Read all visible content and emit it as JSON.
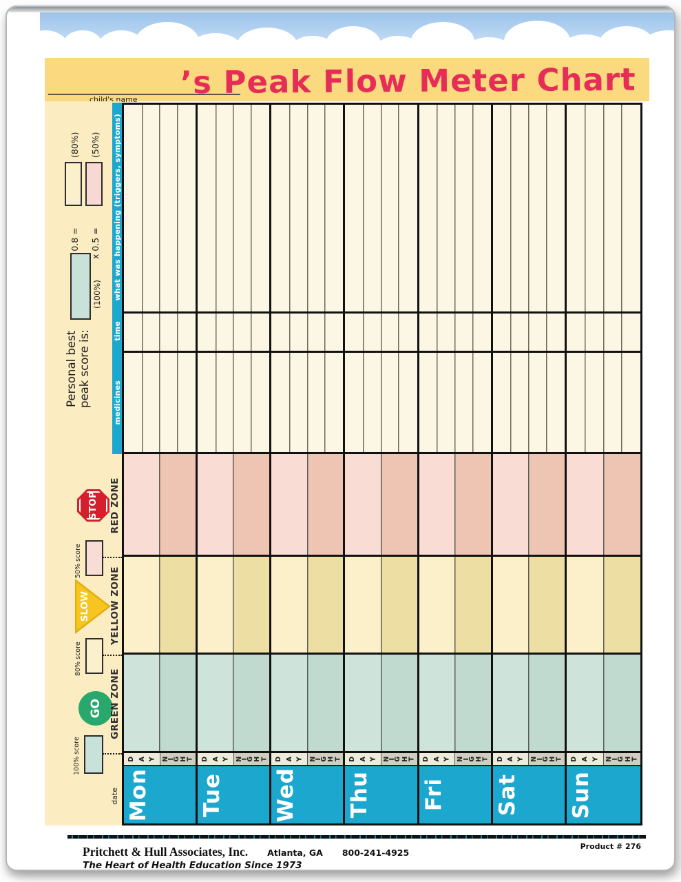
{
  "header": {
    "title": "’s Peak Flow Meter Chart",
    "child_name_label": "child's name",
    "child_name_value": ""
  },
  "sidebar": {
    "personal_best_line1": "Personal best",
    "personal_best_line2": "peak score is:",
    "pct_100_label": "(100%)",
    "mult_80_label": "x 0.8 =",
    "pct_80_label": "(80%)",
    "mult_50_label": "x 0.5 =",
    "pct_50_label": "(50%)",
    "score_50_label": "50% score",
    "score_80_label": "80% score",
    "score_100_label": "100% score",
    "date_label": "date"
  },
  "row_headers": [
    "what was happening (triggers, symptoms)",
    "time",
    "medicines"
  ],
  "zones": [
    {
      "name": "RED ZONE",
      "sign": "STOP"
    },
    {
      "name": "YELLOW ZONE",
      "sign": "SLOW"
    },
    {
      "name": "GREEN ZONE",
      "sign": "GO"
    }
  ],
  "grid": {
    "day_label": "DAY",
    "night_label": "NIGHT",
    "days": [
      {
        "label": "Mon"
      },
      {
        "label": "Tue"
      },
      {
        "label": "Wed"
      },
      {
        "label": "Thu"
      },
      {
        "label": "Fri"
      },
      {
        "label": "Sat"
      },
      {
        "label": "Sun"
      }
    ]
  },
  "footer": {
    "company": "Pritchett & Hull Associates, Inc.",
    "city": "Atlanta, GA",
    "phone": "800-241-4925",
    "tagline": "The Heart of Health Education Since 1973",
    "product": "Product # 276"
  },
  "colors": {
    "accent_blue": "#1ba7ce",
    "header_yellow": "#fbd97e",
    "side_cream": "#fbecc1",
    "grid_cream": "#fcf7e4",
    "title_pink": "#e62d58",
    "red_zone_day": "#f9dcd3",
    "red_zone_night": "#eec5b3",
    "yellow_zone_day": "#fbf0ca",
    "yellow_zone_night": "#eddfa4",
    "green_zone_day": "#cee4db",
    "green_zone_night": "#c0dacf",
    "stop_red": "#d61f2c",
    "slow_yellow": "#f6c51f",
    "go_green": "#29a86d"
  }
}
